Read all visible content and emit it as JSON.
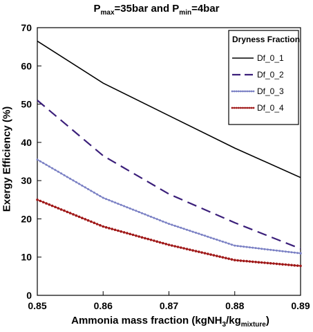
{
  "chart_data": {
    "type": "line",
    "title_parts": {
      "p": "P",
      "max_sub": "max",
      "mid": "=35bar and P",
      "min_sub": "min",
      "end": "=4bar"
    },
    "xlabel_parts": {
      "pre": "Ammonia mass fraction (kgNH",
      "sub1": "3",
      "mid": "/kg",
      "sub2": "mixture",
      "post": ")"
    },
    "ylabel": "Exergy Efficiency (%)",
    "x": [
      0.85,
      0.86,
      0.87,
      0.88,
      0.89
    ],
    "x_tick_labels": [
      "0.85",
      "0.86",
      "0.87",
      "0.88",
      "0.89"
    ],
    "xlim": [
      0.85,
      0.89
    ],
    "ylim": [
      0,
      70
    ],
    "y_ticks": [
      0,
      10,
      20,
      30,
      40,
      50,
      60,
      70
    ],
    "grid": false,
    "legend": {
      "title": "Dryness Fraction",
      "placement": "top-right"
    },
    "series": [
      {
        "name": "Df_0_1",
        "values": [
          66.5,
          55.5,
          47.0,
          38.5,
          30.8
        ],
        "color": "#000000",
        "style": "solid"
      },
      {
        "name": "Df_0_2",
        "values": [
          51.0,
          36.5,
          26.5,
          19.0,
          12.2
        ],
        "color": "#3b1f7a",
        "style": "dashed"
      },
      {
        "name": "Df_0_3",
        "values": [
          35.5,
          25.5,
          18.7,
          13.0,
          11.0
        ],
        "color": "#7a80c4",
        "style": "dotted-marker"
      },
      {
        "name": "Df_0_4",
        "values": [
          25.0,
          18.0,
          13.2,
          9.2,
          7.7
        ],
        "color": "#a01818",
        "style": "dotted-marker"
      }
    ]
  }
}
